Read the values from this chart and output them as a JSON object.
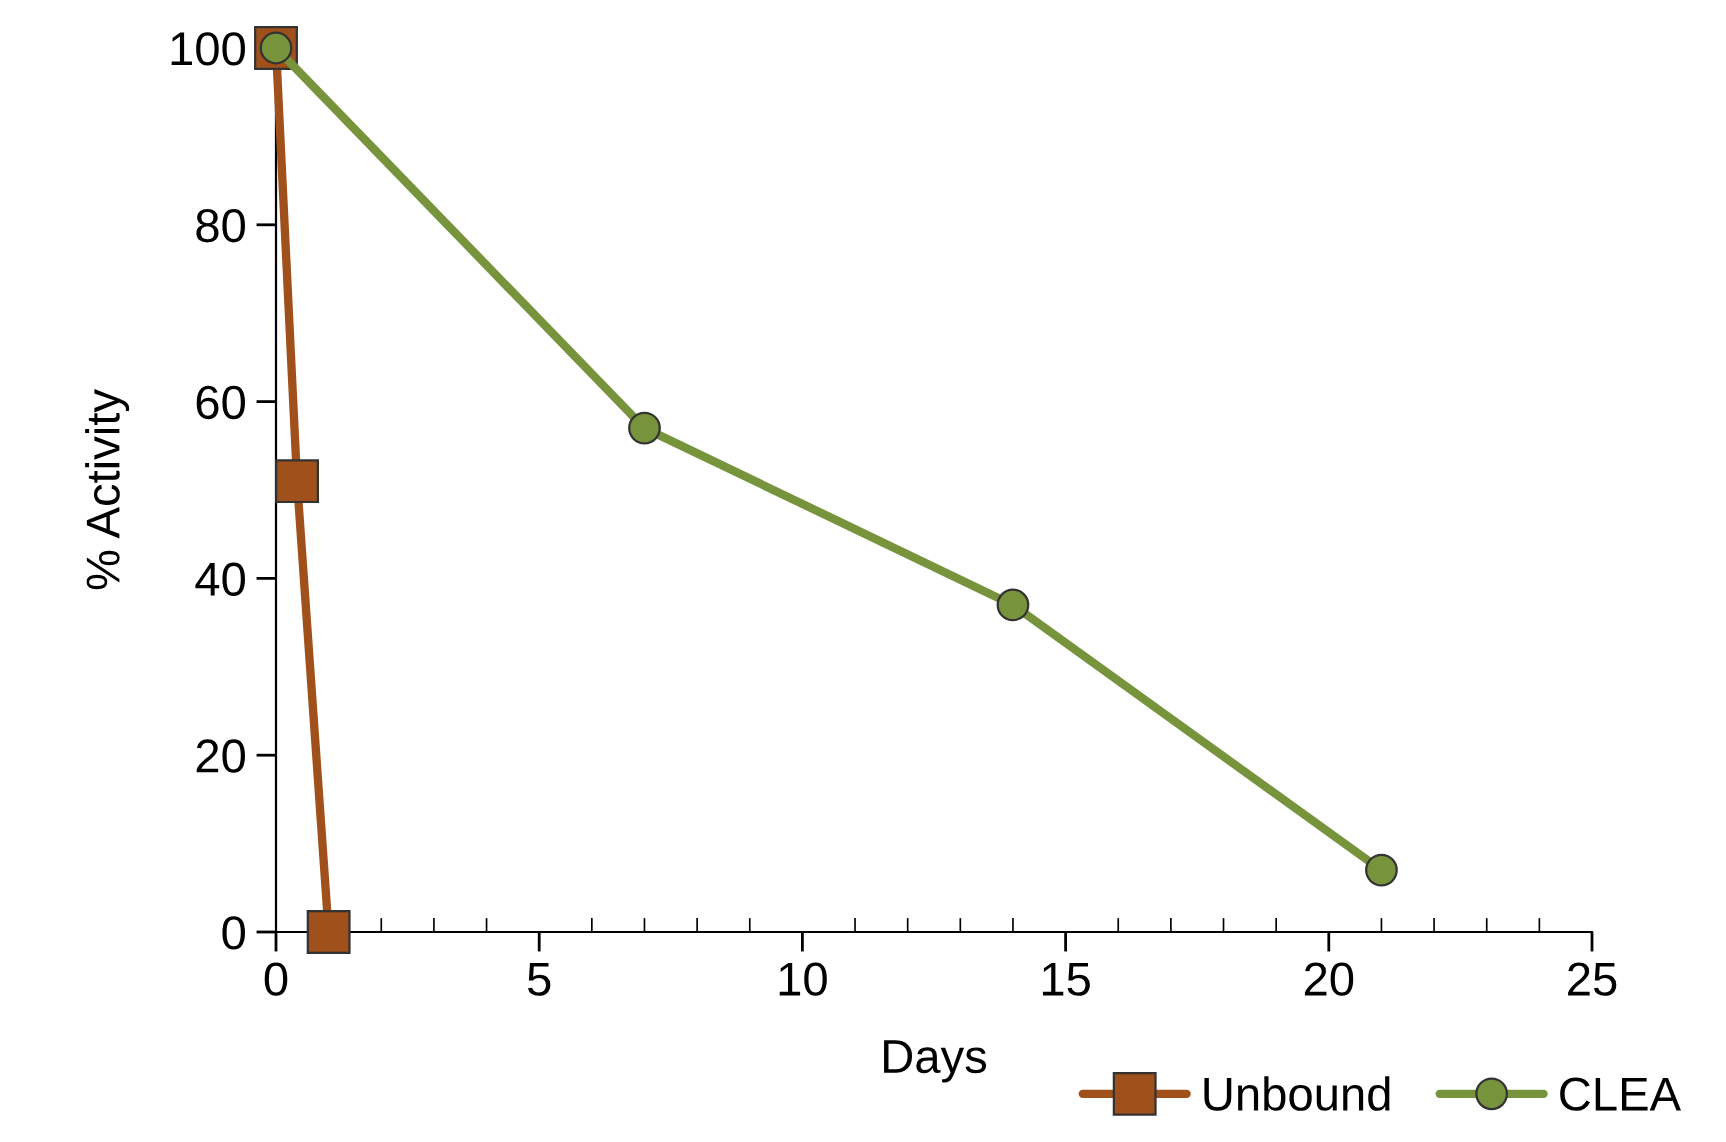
{
  "chart_data": {
    "type": "line",
    "xlabel": "Days",
    "ylabel": "% Activity",
    "xlim": [
      0,
      25
    ],
    "xticks": [
      0,
      5,
      10,
      15,
      20,
      25
    ],
    "ylim": [
      0,
      100
    ],
    "yticks": [
      0,
      20,
      40,
      60,
      80,
      100
    ],
    "grid": false,
    "legend": "bottom right",
    "line_style": "solid",
    "series": [
      {
        "name": "Unbound",
        "color": "#a0501a",
        "marker": "square",
        "x": [
          0,
          0.4,
          1
        ],
        "values": [
          100,
          51,
          0
        ]
      },
      {
        "name": "CLEA",
        "color": "#77933c",
        "marker": "circle",
        "x": [
          0,
          7,
          14,
          21
        ],
        "values": [
          100,
          57,
          37,
          7
        ]
      }
    ]
  }
}
